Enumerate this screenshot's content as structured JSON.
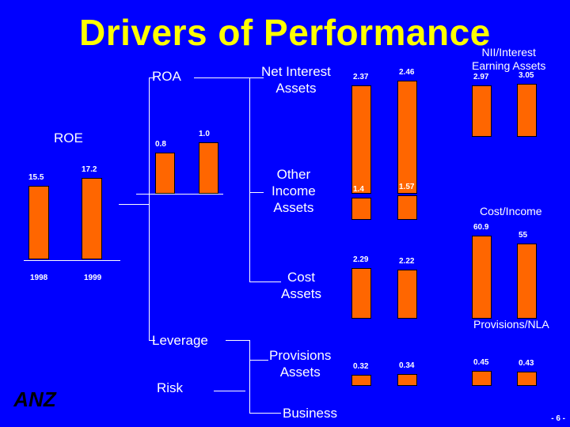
{
  "title": "Drivers of Performance",
  "nodes": {
    "roa": "ROA",
    "roe": "ROE",
    "leverage": "Leverage",
    "risk": "Risk",
    "business": "Business",
    "net_interest": [
      "Net Interest",
      "Assets"
    ],
    "other_income": [
      "Other",
      "Income",
      "Assets"
    ],
    "cost": [
      "Cost",
      "Assets"
    ],
    "provisions": [
      "Provisions",
      "Assets"
    ],
    "nii": [
      "NII/Interest",
      "Earning Assets"
    ],
    "cost_income": "Cost/Income",
    "provisions_nla": "Provisions/NLA"
  },
  "years": [
    "1998",
    "1999"
  ],
  "chart_data": [
    {
      "type": "bar",
      "title": "ROE",
      "categories": [
        "1998",
        "1999"
      ],
      "values": [
        15.5,
        17.2
      ]
    },
    {
      "type": "bar",
      "title": "ROA",
      "categories": [
        "1998",
        "1999"
      ],
      "values": [
        0.8,
        1.0
      ],
      "labels": [
        "0.8",
        "1.0"
      ]
    },
    {
      "type": "bar",
      "title": "Net Interest Assets",
      "categories": [
        "1998",
        "1999"
      ],
      "values": [
        2.37,
        2.46
      ]
    },
    {
      "type": "bar",
      "title": "Other Income Assets",
      "categories": [
        "1998",
        "1999"
      ],
      "values": [
        1.4,
        1.57
      ]
    },
    {
      "type": "bar",
      "title": "Cost Assets",
      "categories": [
        "1998",
        "1999"
      ],
      "values": [
        2.29,
        2.22
      ]
    },
    {
      "type": "bar",
      "title": "Provisions Assets",
      "categories": [
        "1998",
        "1999"
      ],
      "values": [
        0.32,
        0.34
      ]
    },
    {
      "type": "bar",
      "title": "NII/Interest Earning Assets",
      "categories": [
        "1998",
        "1999"
      ],
      "values": [
        2.97,
        3.05
      ]
    },
    {
      "type": "bar",
      "title": "Cost/Income",
      "categories": [
        "1998",
        "1999"
      ],
      "values": [
        60.9,
        55
      ]
    },
    {
      "type": "bar",
      "title": "Provisions/NLA",
      "categories": [
        "1998",
        "1999"
      ],
      "values": [
        0.45,
        0.43
      ]
    }
  ],
  "logo_text": "ANZ",
  "page_number": "- 6 -",
  "colors": {
    "background": "#0000ff",
    "title": "#ffff00",
    "bar": "#ff6600",
    "text": "#ffffff"
  }
}
